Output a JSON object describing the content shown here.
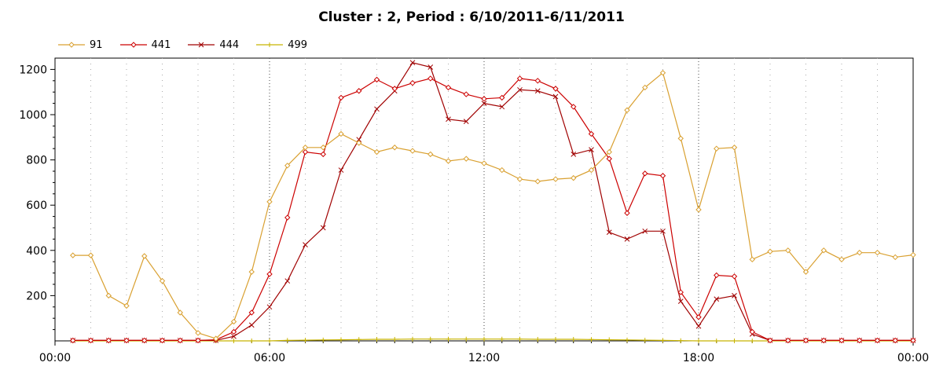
{
  "chart_data": {
    "type": "line",
    "title": "Cluster : 2, Period : 6/10/2011-6/11/2011",
    "xlabel": "",
    "ylabel": "",
    "x_range_hours": [
      0,
      24
    ],
    "ylim": [
      0,
      1250
    ],
    "x_ticks": [
      "00:00",
      "06:00",
      "12:00",
      "18:00",
      "00:00"
    ],
    "y_ticks": [
      200,
      400,
      600,
      800,
      1000,
      1200
    ],
    "grid": true,
    "legend_position": "top-left",
    "x": [
      "00:30",
      "01:00",
      "01:30",
      "02:00",
      "02:30",
      "03:00",
      "03:30",
      "04:00",
      "04:30",
      "05:00",
      "05:30",
      "06:00",
      "06:30",
      "07:00",
      "07:30",
      "08:00",
      "08:30",
      "09:00",
      "09:30",
      "10:00",
      "10:30",
      "11:00",
      "11:30",
      "12:00",
      "12:30",
      "13:00",
      "13:30",
      "14:00",
      "14:30",
      "15:00",
      "15:30",
      "16:00",
      "16:30",
      "17:00",
      "17:30",
      "18:00",
      "18:30",
      "19:00",
      "19:30",
      "20:00",
      "20:30",
      "21:00",
      "21:30",
      "22:00",
      "22:30",
      "23:00",
      "23:30",
      "00:00"
    ],
    "series": [
      {
        "name": "91",
        "color": "#d9a030",
        "marker": "diamond",
        "values": [
          378,
          378,
          200,
          155,
          375,
          265,
          125,
          35,
          10,
          85,
          305,
          615,
          775,
          855,
          855,
          915,
          875,
          835,
          855,
          840,
          825,
          795,
          805,
          785,
          755,
          715,
          705,
          715,
          720,
          755,
          835,
          1020,
          1120,
          1185,
          895,
          580,
          850,
          855,
          360,
          395,
          400,
          305,
          400,
          360,
          390,
          390,
          370,
          380
        ]
      },
      {
        "name": "441",
        "color": "#cc0000",
        "marker": "diamond",
        "values": [
          2,
          2,
          2,
          2,
          2,
          2,
          2,
          2,
          5,
          40,
          125,
          295,
          545,
          835,
          825,
          1075,
          1105,
          1155,
          1115,
          1140,
          1160,
          1120,
          1090,
          1070,
          1075,
          1160,
          1150,
          1115,
          1035,
          915,
          805,
          565,
          740,
          730,
          215,
          105,
          290,
          285,
          40,
          2,
          2,
          2,
          2,
          2,
          2,
          2,
          2,
          2
        ]
      },
      {
        "name": "444",
        "color": "#a00000",
        "marker": "cross",
        "values": [
          2,
          2,
          2,
          2,
          2,
          2,
          2,
          2,
          2,
          20,
          70,
          150,
          265,
          425,
          500,
          755,
          890,
          1025,
          1105,
          1230,
          1210,
          980,
          970,
          1050,
          1035,
          1110,
          1105,
          1080,
          825,
          845,
          480,
          450,
          485,
          485,
          175,
          65,
          185,
          200,
          30,
          2,
          2,
          2,
          2,
          2,
          2,
          2,
          2,
          2
        ]
      },
      {
        "name": "499",
        "color": "#c8b400",
        "marker": "plus",
        "values": [
          0,
          0,
          0,
          0,
          0,
          0,
          0,
          0,
          0,
          0,
          0,
          0,
          2,
          3,
          4,
          5,
          6,
          7,
          7,
          8,
          8,
          8,
          8,
          8,
          8,
          8,
          7,
          7,
          7,
          6,
          5,
          4,
          3,
          2,
          1,
          0,
          0,
          0,
          0,
          0,
          0,
          0,
          0,
          0,
          0,
          0,
          0,
          0
        ]
      }
    ]
  }
}
